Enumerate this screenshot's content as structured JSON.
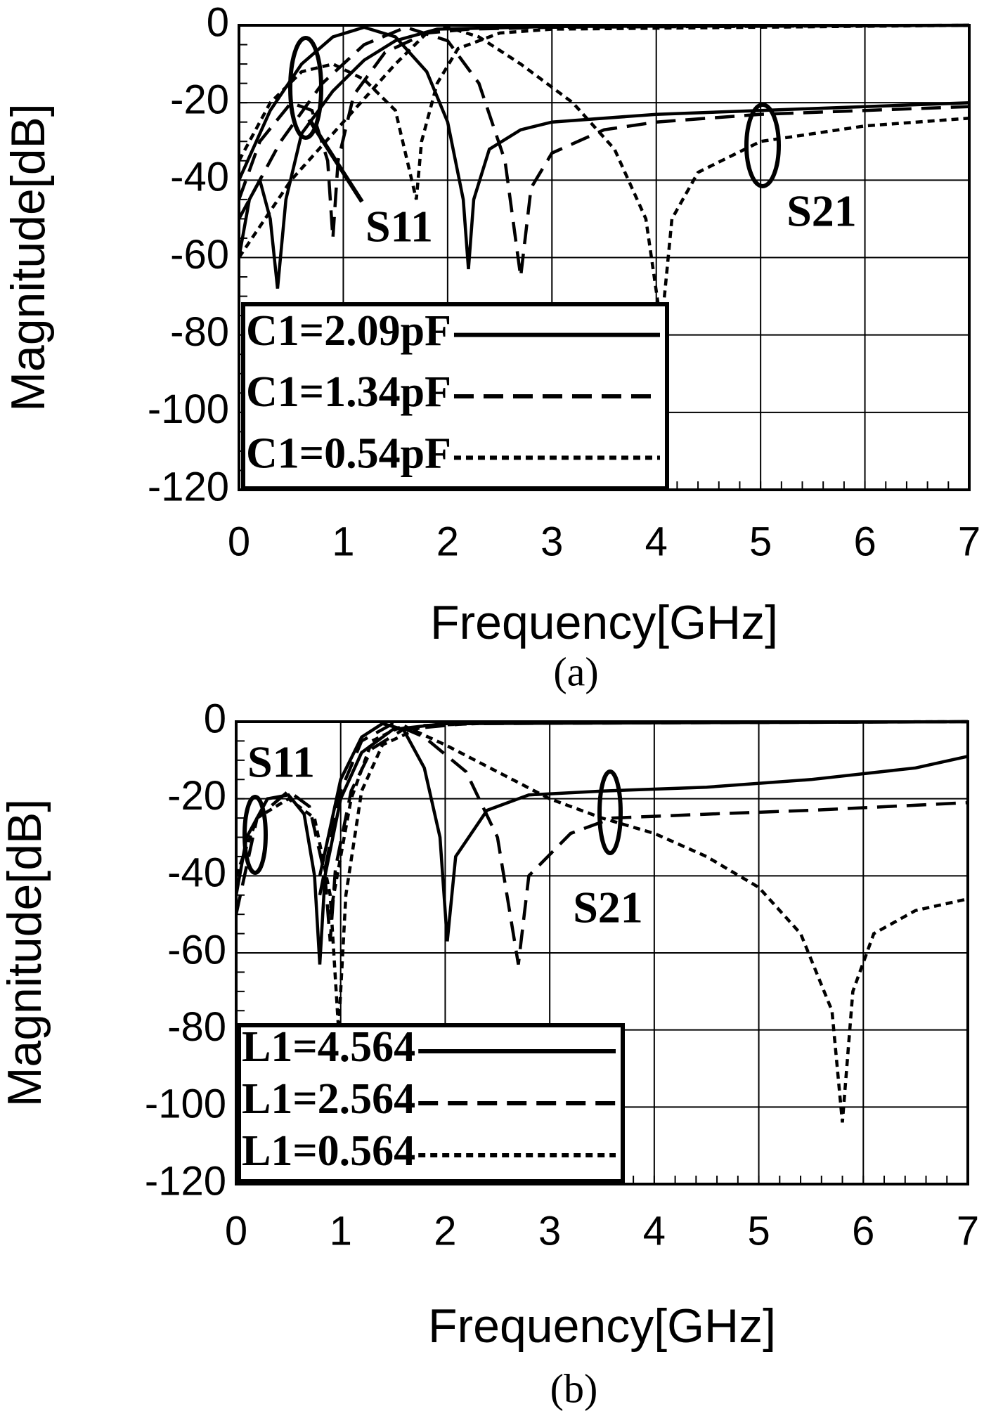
{
  "chart_data": [
    {
      "type": "line",
      "caption": "(a)",
      "x_label": "Frequency[GHz]",
      "y_label": "Magnitude[dB]",
      "xlim": [
        0,
        7
      ],
      "xticks": [
        0,
        1,
        2,
        3,
        4,
        5,
        6,
        7
      ],
      "ylim": [
        -120,
        0
      ],
      "yticks": [
        -120,
        -100,
        -80,
        -60,
        -40,
        -20,
        0
      ],
      "grid": true,
      "annotations": [
        "S11",
        "S21"
      ],
      "series": [
        {
          "name": "C1=2.09pF",
          "color": "#000000",
          "dash": "solid",
          "curves": [
            {
              "x": [
                0,
                0.1,
                0.2,
                0.3,
                0.37,
                0.45,
                0.6,
                0.9,
                1.2,
                1.5,
                1.9,
                3,
                7
              ],
              "values": [
                -60,
                -45,
                -40,
                -50,
                -68,
                -45,
                -28,
                -17,
                -9,
                -4,
                -1,
                -0.3,
                0
              ]
            },
            {
              "x": [
                0,
                0.3,
                0.6,
                0.9,
                1.2,
                1.5,
                1.8,
                2.0,
                2.15,
                2.2,
                2.25,
                2.4,
                2.7,
                3.0,
                4,
                5,
                6,
                7
              ],
              "values": [
                -40,
                -22,
                -10,
                -3,
                -0.5,
                -3,
                -12,
                -25,
                -45,
                -63,
                -45,
                -32,
                -27,
                -25,
                -23,
                -22,
                -21,
                -20
              ]
            }
          ]
        },
        {
          "name": "C1=1.34pF",
          "color": "#000000",
          "dash": "dashed",
          "curves": [
            {
              "x": [
                0,
                0.2,
                0.5,
                0.7,
                0.85,
                0.9,
                0.95,
                1.1,
                1.4,
                1.8,
                2.2,
                3,
                7
              ],
              "values": [
                -45,
                -30,
                -20,
                -22,
                -35,
                -55,
                -35,
                -18,
                -7,
                -2,
                -1,
                -0.5,
                0
              ]
            },
            {
              "x": [
                0,
                0.4,
                0.8,
                1.2,
                1.6,
                2.0,
                2.3,
                2.55,
                2.7,
                2.8,
                3.0,
                3.5,
                4,
                5,
                6,
                7
              ],
              "values": [
                -50,
                -30,
                -15,
                -5,
                -0.5,
                -4,
                -15,
                -35,
                -65,
                -42,
                -33,
                -27,
                -25,
                -23,
                -22,
                -21
              ]
            }
          ]
        },
        {
          "name": "C1=0.54pF",
          "color": "#000000",
          "dash": "dotted",
          "curves": [
            {
              "x": [
                0,
                0.3,
                0.6,
                0.9,
                1.2,
                1.5,
                1.7,
                1.75,
                1.9,
                2.1,
                2.5,
                3,
                7
              ],
              "values": [
                -35,
                -20,
                -12,
                -10,
                -14,
                -22,
                -45,
                -30,
                -15,
                -6,
                -2,
                -1,
                0
              ]
            },
            {
              "x": [
                0,
                0.5,
                1,
                1.5,
                1.8,
                2.0,
                2.3,
                2.7,
                3.2,
                3.6,
                3.9,
                4.05,
                4.15,
                4.4,
                5,
                6,
                7
              ],
              "values": [
                -60,
                -40,
                -25,
                -10,
                -2,
                -0.5,
                -3,
                -10,
                -20,
                -32,
                -50,
                -78,
                -50,
                -38,
                -30,
                -26,
                -24
              ]
            }
          ]
        }
      ]
    },
    {
      "type": "line",
      "caption": "(b)",
      "x_label": "Frequency[GHz]",
      "y_label": "Magnitude[dB]",
      "xlim": [
        0,
        7
      ],
      "xticks": [
        0,
        1,
        2,
        3,
        4,
        5,
        6,
        7
      ],
      "ylim": [
        -120,
        0
      ],
      "yticks": [
        -120,
        -100,
        -80,
        -60,
        -40,
        -20,
        0
      ],
      "grid": true,
      "annotations": [
        "S11",
        "S21"
      ],
      "series": [
        {
          "name": "L1=4.564",
          "color": "#000000",
          "dash": "solid",
          "curves": [
            {
              "x": [
                0,
                0.1,
                0.3,
                0.5,
                0.65,
                0.75,
                0.8,
                0.85,
                1.0,
                1.2,
                1.5,
                2,
                7
              ],
              "values": [
                -45,
                -30,
                -20,
                -19,
                -24,
                -40,
                -63,
                -40,
                -20,
                -8,
                -2,
                -0.5,
                0
              ]
            },
            {
              "x": [
                0.8,
                1.0,
                1.2,
                1.4,
                1.6,
                1.8,
                1.95,
                2.02,
                2.1,
                2.4,
                2.8,
                3.5,
                4.5,
                5.5,
                6.5,
                7
              ],
              "values": [
                -40,
                -15,
                -4,
                -0.5,
                -2,
                -12,
                -30,
                -57,
                -35,
                -23,
                -19,
                -18,
                -17,
                -15,
                -12,
                -9
              ]
            }
          ]
        },
        {
          "name": "L1=2.564",
          "color": "#000000",
          "dash": "dashed",
          "curves": [
            {
              "x": [
                0,
                0.2,
                0.5,
                0.7,
                0.85,
                0.9,
                0.95,
                1.1,
                1.3,
                1.6,
                2.2,
                7
              ],
              "values": [
                -50,
                -25,
                -18,
                -22,
                -40,
                -57,
                -38,
                -18,
                -7,
                -2,
                -0.5,
                0
              ]
            },
            {
              "x": [
                0.8,
                1.0,
                1.2,
                1.5,
                1.8,
                2.2,
                2.5,
                2.7,
                2.8,
                3.2,
                3.6,
                4.5,
                5.5,
                7
              ],
              "values": [
                -45,
                -18,
                -5,
                -0.5,
                -4,
                -13,
                -30,
                -63,
                -40,
                -29,
                -25,
                -24,
                -23,
                -21
              ]
            }
          ]
        },
        {
          "name": "L1=0.564",
          "color": "#000000",
          "dash": "dotted",
          "curves": [
            {
              "x": [
                0,
                0.2,
                0.5,
                0.75,
                0.9,
                0.98,
                1.05,
                1.2,
                1.4,
                1.8,
                2.5,
                7
              ],
              "values": [
                -40,
                -25,
                -20,
                -25,
                -45,
                -80,
                -45,
                -18,
                -6,
                -1,
                -0.3,
                0
              ]
            },
            {
              "x": [
                0.9,
                1.1,
                1.3,
                1.6,
                2.0,
                2.5,
                3,
                3.5,
                4,
                4.5,
                5,
                5.4,
                5.7,
                5.8,
                5.9,
                6.1,
                6.5,
                7
              ],
              "values": [
                -50,
                -20,
                -5,
                -1,
                -6,
                -13,
                -20,
                -25,
                -29,
                -35,
                -43,
                -55,
                -75,
                -104,
                -70,
                -55,
                -49,
                -46
              ]
            }
          ]
        }
      ]
    }
  ]
}
